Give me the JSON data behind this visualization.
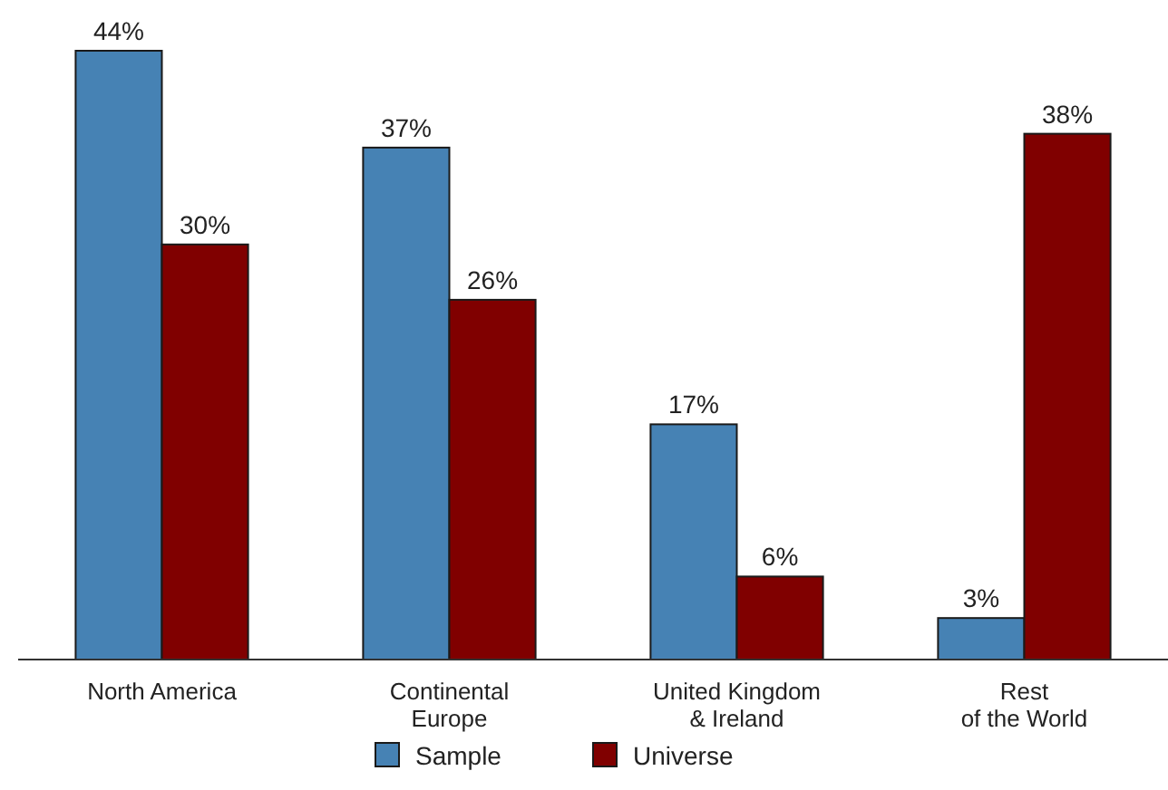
{
  "chart_data": {
    "type": "bar",
    "categories": [
      "North America",
      "Continental\nEurope",
      "United Kingdom\n& Ireland",
      "Rest\nof the World"
    ],
    "series": [
      {
        "name": "Sample",
        "color": "#4682b4",
        "values": [
          44,
          37,
          17,
          3
        ],
        "value_labels": [
          "44%",
          "37%",
          "17%",
          "3%"
        ]
      },
      {
        "name": "Universe",
        "color": "#800000",
        "values": [
          30,
          26,
          6,
          38
        ],
        "value_labels": [
          "30%",
          "26%",
          "6%",
          "38%"
        ]
      }
    ],
    "legend": "bottom"
  }
}
